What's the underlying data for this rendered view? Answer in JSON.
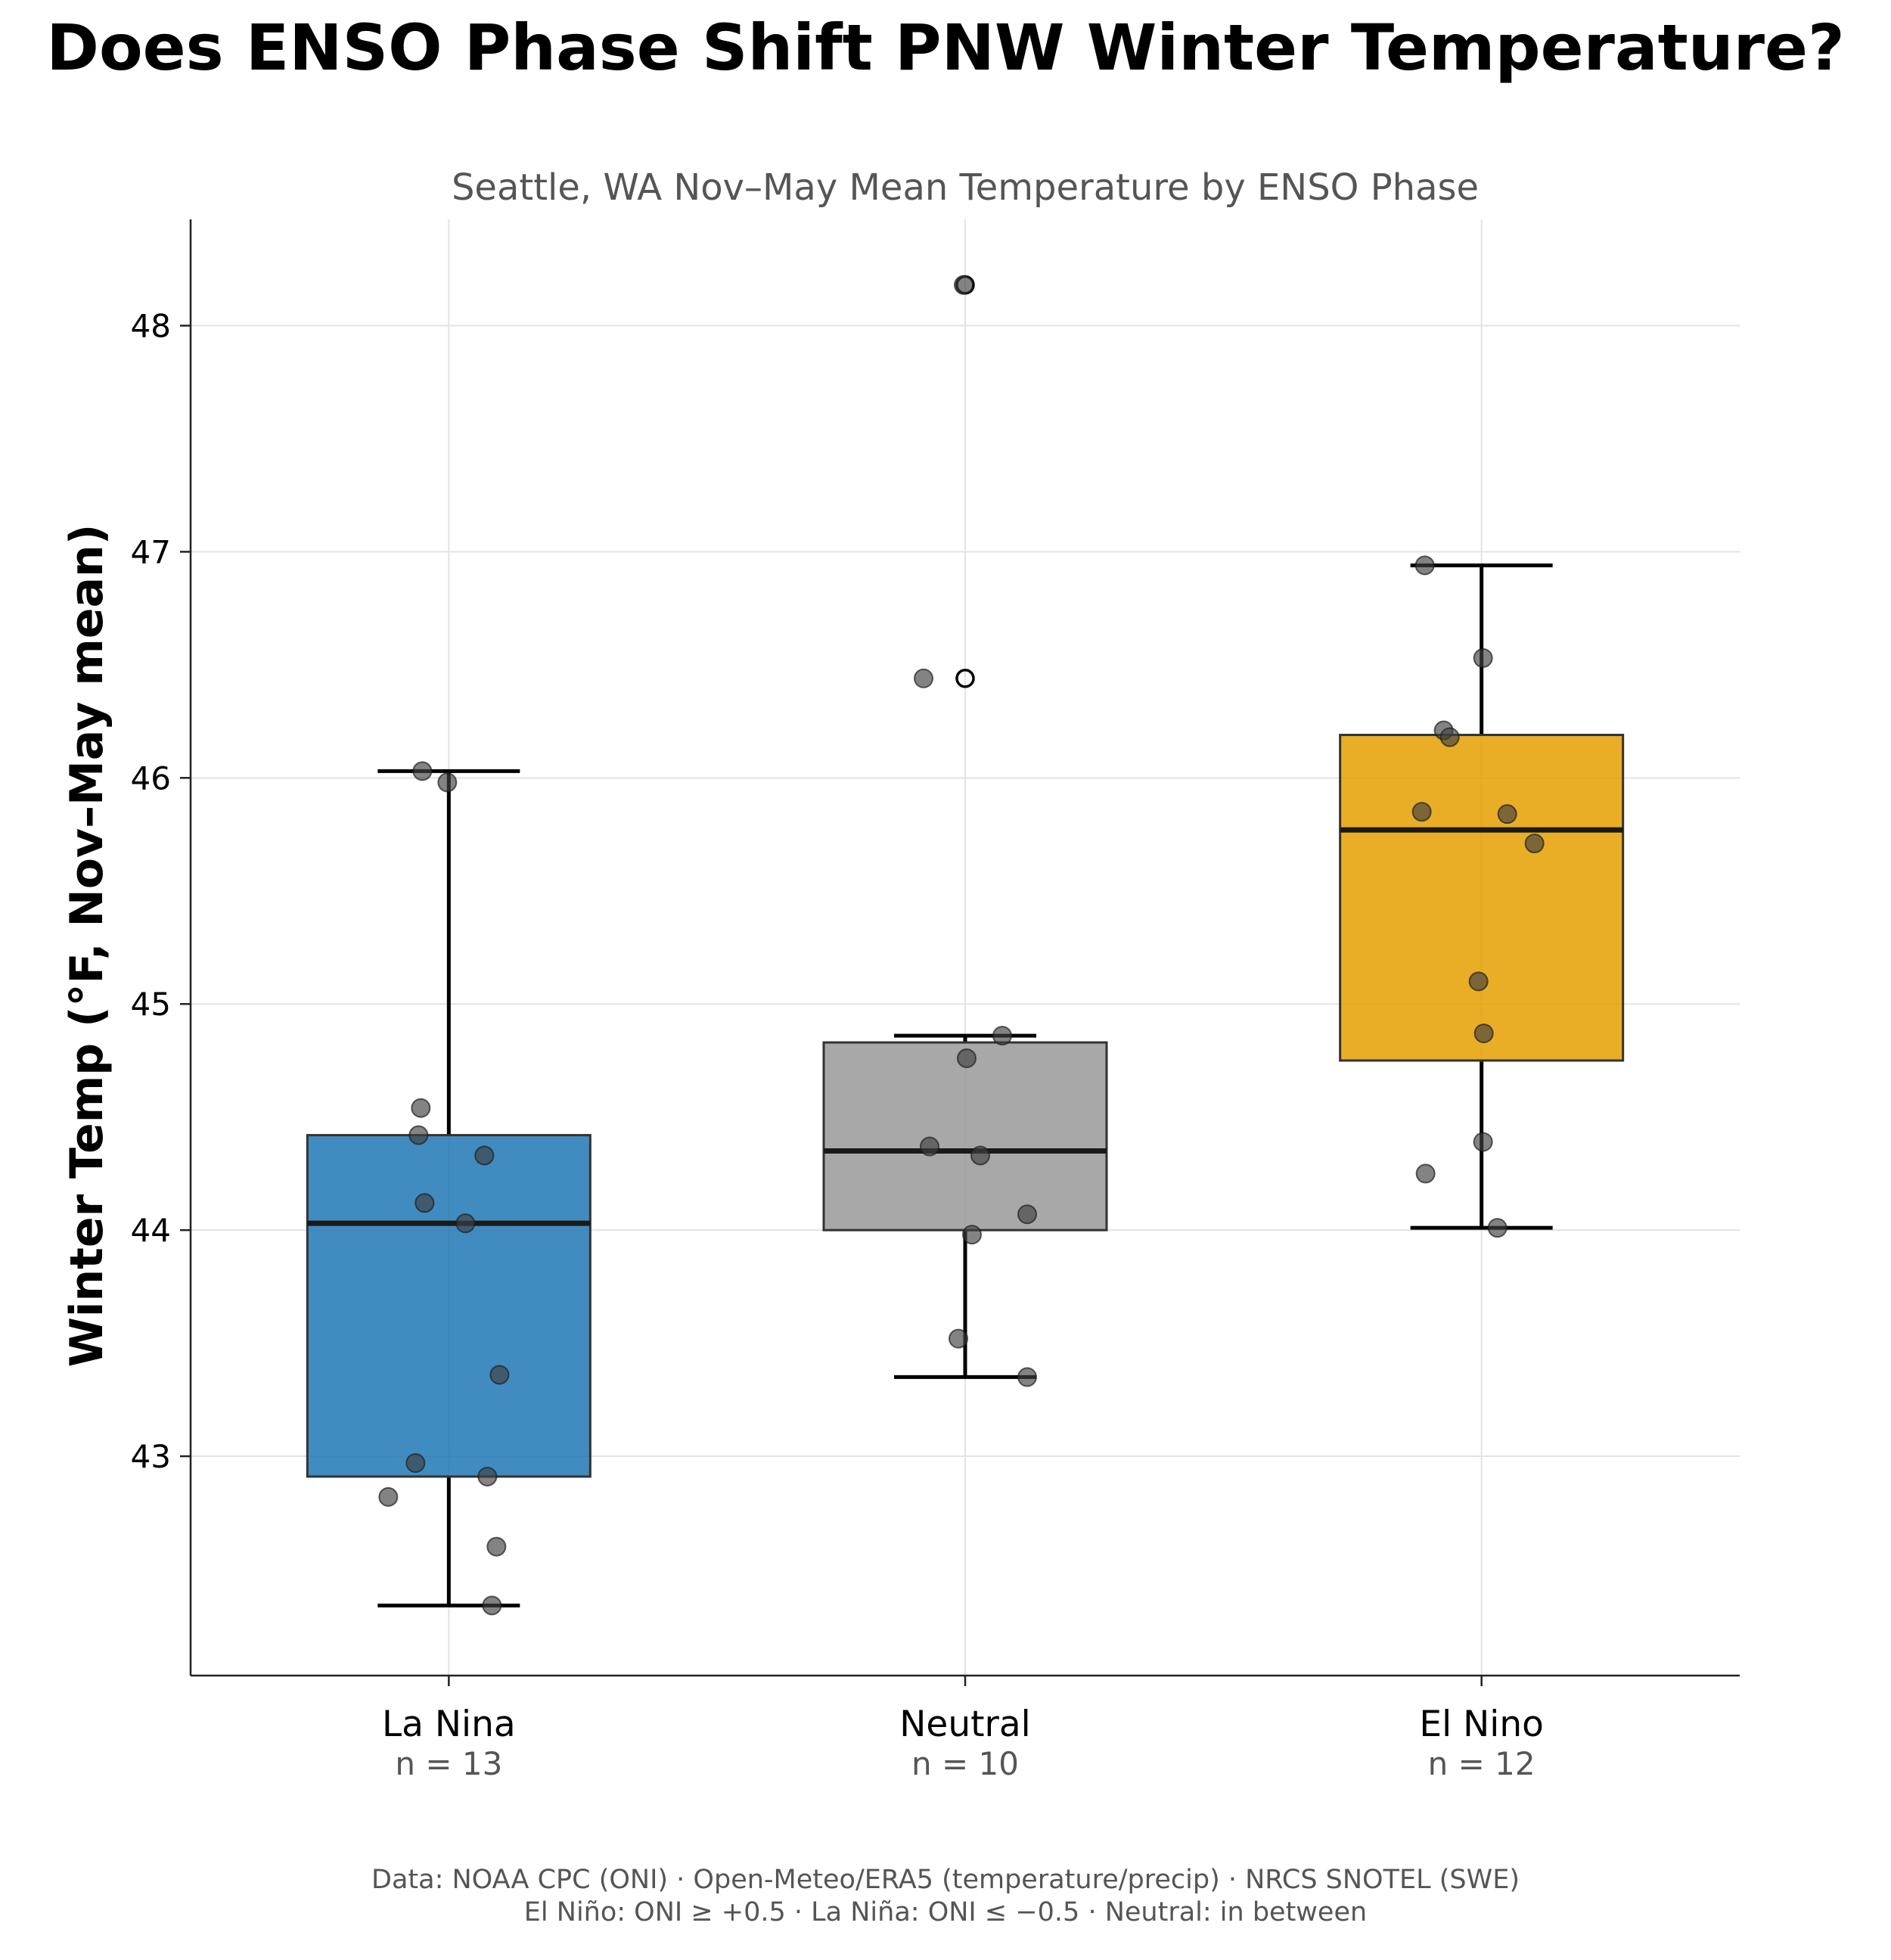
{
  "title": "Does ENSO Phase Shift PNW Winter Temperature?",
  "footer_line1": "Data: NOAA CPC (ONI) · Open-Meteo/ERA5 (temperature/precip) · NRCS SNOTEL (SWE)",
  "footer_line2": "El Niño: ONI ≥ +0.5   ·   La Niña: ONI ≤ −0.5   ·   Neutral: in between",
  "chart_data": {
    "type": "box",
    "title": "Seattle, WA Nov–May Mean Temperature by ENSO Phase",
    "xlabel": "",
    "ylabel": "Winter Temp (°F, Nov–May mean)",
    "ylim": [
      42.03,
      48.47
    ],
    "yticks": [
      43,
      44,
      45,
      46,
      47,
      48
    ],
    "grid": true,
    "categories": [
      "La Nina",
      "Neutral",
      "El Nino"
    ],
    "counts": [
      "n = 13",
      "n = 10",
      "n = 12"
    ],
    "boxes": [
      {
        "name": "La Nina",
        "color": "#1f77b4",
        "q1": 42.91,
        "median": 44.03,
        "q3": 44.42,
        "whisker_low": 42.34,
        "whisker_high": 46.03,
        "outliers": [],
        "points": [
          46.03,
          45.98,
          44.54,
          44.42,
          44.33,
          44.12,
          44.03,
          43.36,
          42.97,
          42.91,
          42.82,
          42.6,
          42.34
        ]
      },
      {
        "name": "Neutral",
        "color": "#999999",
        "q1": 44.0,
        "median": 44.35,
        "q3": 44.83,
        "whisker_low": 43.35,
        "whisker_high": 44.86,
        "outliers": [
          48.18,
          46.44
        ],
        "points": [
          48.18,
          46.44,
          44.86,
          44.76,
          44.37,
          44.33,
          44.07,
          43.98,
          43.52,
          43.35
        ]
      },
      {
        "name": "El Nino",
        "color": "#e69f00",
        "q1": 44.75,
        "median": 45.77,
        "q3": 46.19,
        "whisker_low": 44.01,
        "whisker_high": 46.94,
        "outliers": [],
        "points": [
          46.94,
          46.53,
          46.21,
          46.18,
          45.85,
          45.84,
          45.71,
          45.1,
          44.87,
          44.39,
          44.25,
          44.01
        ]
      }
    ]
  }
}
